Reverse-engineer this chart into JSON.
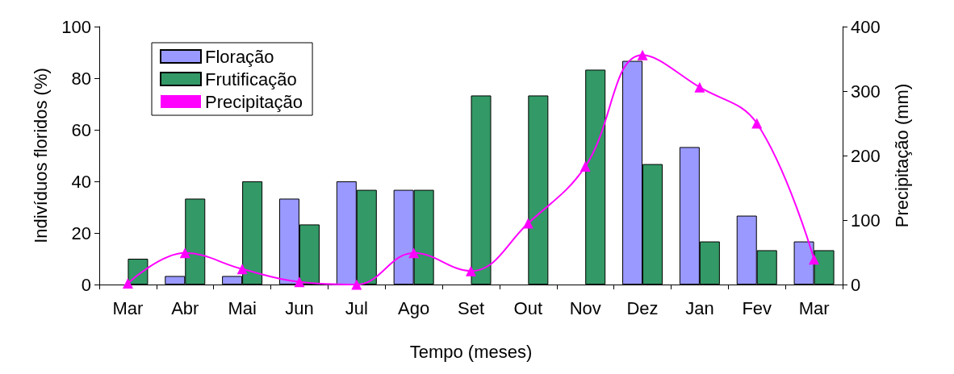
{
  "chart_data": {
    "type": "bar",
    "xlabel": "Tempo (meses)",
    "ylabel": "Indivíduos floridos (%)",
    "y2label": "Precipitação (mm)",
    "categories": [
      "Mar",
      "Abr",
      "Mai",
      "Jun",
      "Jul",
      "Ago",
      "Set",
      "Out",
      "Nov",
      "Dez",
      "Jan",
      "Fev",
      "Mar"
    ],
    "series": [
      {
        "name": "Floração",
        "color": "#9999ff",
        "values": [
          0,
          3.3,
          3.3,
          33.3,
          40,
          36.7,
          0,
          0,
          0,
          86.7,
          53.3,
          26.7,
          16.7
        ]
      },
      {
        "name": "Frutificação",
        "color": "#339966",
        "values": [
          10,
          33.3,
          40,
          23.3,
          36.7,
          36.7,
          73.3,
          73.3,
          83.3,
          46.7,
          16.7,
          13.3,
          13.3
        ]
      },
      {
        "name": "Precipitação",
        "type": "line",
        "axis": "y2",
        "color": "#ff00ff",
        "marker": "triangle",
        "values": [
          2,
          49,
          24,
          4,
          0,
          49,
          21,
          95,
          183,
          356,
          306,
          250,
          39
        ]
      }
    ],
    "ylim": [
      0,
      100
    ],
    "yticks": [
      0,
      20,
      40,
      60,
      80,
      100
    ],
    "y2lim": [
      0,
      400
    ],
    "y2ticks": [
      0,
      100,
      200,
      300,
      400
    ],
    "grid": false,
    "legend": "top left"
  }
}
